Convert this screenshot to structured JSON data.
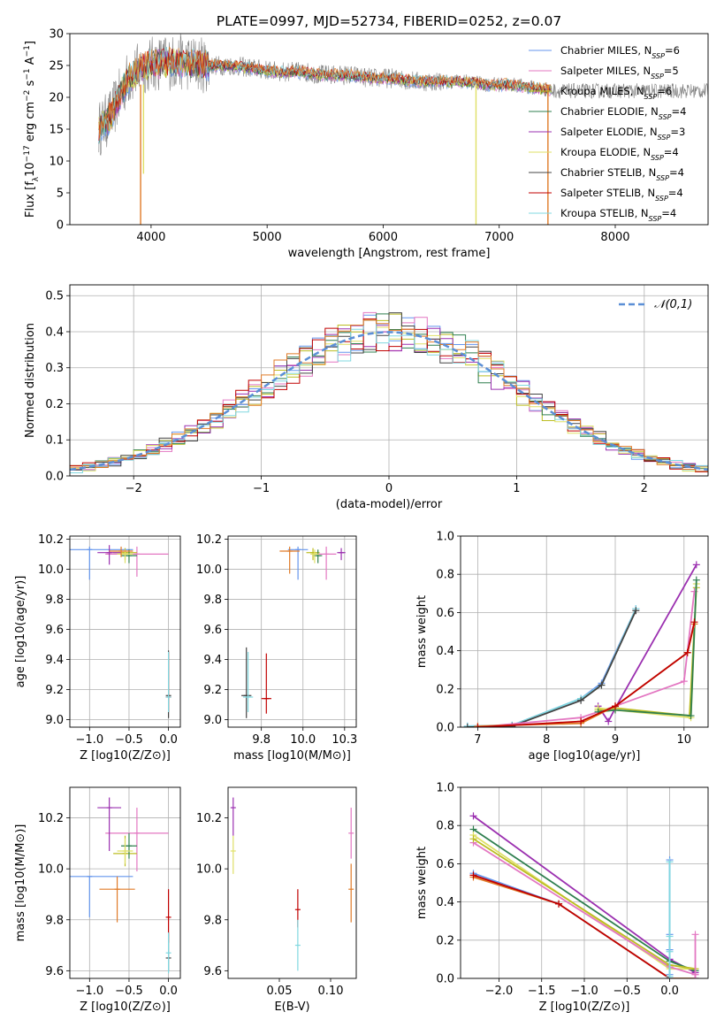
{
  "figure_title": "PLATE=0997, MJD=52734, FIBERID=0252, z=0.07",
  "colors": {
    "Chabrier MILES": "#6495ed",
    "Salpeter MILES": "#e377c2",
    "Kroupa MILES": "#bcbd22",
    "Chabrier ELODIE": "#2f7f4f",
    "Salpeter ELODIE": "#9b30b0",
    "Kroupa ELODIE": "#dfe066",
    "Chabrier STELIB": "#444444",
    "Salpeter STELIB": "#c00000",
    "Kroupa STELIB": "#80d8e0",
    "orange": "#e07b28",
    "gray_data": "#808080",
    "normal": "#5b8fd6"
  },
  "chart_data": [
    {
      "id": "spectrum",
      "type": "line",
      "title": "PLATE=0997, MJD=52734, FIBERID=0252, z=0.07",
      "xlabel": "wavelength [Angstrom, rest frame]",
      "ylabel": "Flux [f_λ 10^-17 erg cm^-2 s^-1 A^-1]",
      "xlim": [
        3300,
        8800
      ],
      "ylim": [
        0,
        30
      ],
      "xticks": [
        4000,
        5000,
        6000,
        7000,
        8000
      ],
      "yticks": [
        0,
        5,
        10,
        15,
        20,
        25,
        30
      ],
      "legend_position": "top-right",
      "legend": [
        {
          "name": "Chabrier MILES",
          "nssp": "6"
        },
        {
          "name": "Salpeter MILES",
          "nssp": "5"
        },
        {
          "name": "Kroupa MILES",
          "nssp": "6"
        },
        {
          "name": "Chabrier ELODIE",
          "nssp": "4"
        },
        {
          "name": "Salpeter ELODIE",
          "nssp": "3"
        },
        {
          "name": "Kroupa ELODIE",
          "nssp": "4"
        },
        {
          "name": "Chabrier STELIB",
          "nssp": "4"
        },
        {
          "name": "Salpeter STELIB",
          "nssp": "4"
        },
        {
          "name": "Kroupa STELIB",
          "nssp": "4"
        }
      ],
      "continuum": {
        "x": [
          3550,
          3650,
          3800,
          3950,
          4100,
          4300,
          4500,
          4700,
          4900,
          5100,
          5300,
          5500,
          5700,
          5900,
          6100,
          6300,
          6500,
          6700,
          6900,
          7100,
          7300,
          7500
        ],
        "y": [
          15,
          17,
          23,
          25,
          25.5,
          25.5,
          25,
          25,
          24.5,
          24,
          24,
          23.5,
          23.5,
          23,
          23,
          22.5,
          22.5,
          22.5,
          22,
          22,
          21.5,
          21
        ]
      },
      "dips": [
        {
          "x": 3910,
          "y": 0
        },
        {
          "x": 3935,
          "y": 8
        },
        {
          "x": 6800,
          "y": 0
        },
        {
          "x": 7420,
          "y": 0
        }
      ]
    },
    {
      "id": "residuals",
      "type": "line",
      "xlabel": "(data-model)/error",
      "ylabel": "Normed distribution",
      "xlim": [
        -2.5,
        2.5
      ],
      "ylim": [
        0,
        0.53
      ],
      "xticks": [
        -2,
        -1,
        0,
        1,
        2
      ],
      "yticks": [
        0.0,
        0.1,
        0.2,
        0.3,
        0.4,
        0.5
      ],
      "grid": true,
      "legend_position": "top-right",
      "legend": [
        "𝒩(0,1)"
      ],
      "bin_width": 0.1
    },
    {
      "id": "age_vs_Z",
      "type": "scatter",
      "xlabel": "Z [log10(Z/Z⊙)]",
      "ylabel": "age  [log10(age/yr)]",
      "xlim": [
        -1.25,
        0.15
      ],
      "ylim": [
        8.95,
        10.22
      ],
      "xticks": [
        -1.0,
        -0.5,
        0.0
      ],
      "yticks": [
        9.0,
        9.2,
        9.4,
        9.6,
        9.8,
        10.0,
        10.2
      ],
      "grid": true,
      "points": [
        {
          "series": "Chabrier MILES",
          "x": -1.0,
          "xerr": 1.1,
          "y": 10.13,
          "yerr": [
            0.2,
            0.02
          ]
        },
        {
          "series": "Salpeter MILES",
          "x": -0.4,
          "xerr": 0.8,
          "y": 10.1,
          "yerr": [
            0.15,
            0.05
          ]
        },
        {
          "series": "Kroupa MILES",
          "x": -0.55,
          "xerr": 0.3,
          "y": 10.11,
          "yerr": [
            0.05,
            0.03
          ]
        },
        {
          "series": "Chabrier ELODIE",
          "x": -0.5,
          "xerr": 0.2,
          "y": 10.09,
          "yerr": [
            0.05,
            0.04
          ]
        },
        {
          "series": "Salpeter ELODIE",
          "x": -0.75,
          "xerr": 0.3,
          "y": 10.11,
          "yerr": [
            0.08,
            0.05
          ]
        },
        {
          "series": "Kroupa ELODIE",
          "x": -0.55,
          "xerr": 0.2,
          "y": 10.1,
          "yerr": [
            0.06,
            0.03
          ]
        },
        {
          "series": "Chabrier STELIB",
          "x": 0.0,
          "xerr": 0.02,
          "y": 9.16,
          "yerr": [
            0.15,
            0.3
          ]
        },
        {
          "series": "Salpeter STELIB",
          "x": 0.0,
          "xerr": 0.02,
          "y": 9.15,
          "yerr": [
            0.1,
            0.3
          ]
        },
        {
          "series": "Kroupa STELIB",
          "x": 0.0,
          "xerr": 0.02,
          "y": 9.15,
          "yerr": [
            0.1,
            0.3
          ]
        },
        {
          "series": "orange",
          "x": -0.6,
          "xerr": 0.3,
          "y": 10.12,
          "yerr": [
            0.04,
            0.03
          ]
        }
      ]
    },
    {
      "id": "age_vs_mass",
      "type": "scatter",
      "xlabel": "mass [log10(M/M⊙)]",
      "ylabel": "",
      "xlim": [
        9.55,
        10.32
      ],
      "ylim": [
        8.95,
        10.22
      ],
      "xticks": [
        9.75,
        10.0,
        10.25
      ],
      "yticks": [
        9.0,
        9.2,
        9.4,
        9.6,
        9.8,
        10.0,
        10.2
      ],
      "grid": true,
      "points": [
        {
          "series": "Chabrier MILES",
          "x": 9.97,
          "xerr": 0.12,
          "y": 10.13,
          "yerr": [
            0.2,
            0.02
          ]
        },
        {
          "series": "Salpeter MILES",
          "x": 10.14,
          "xerr": 0.12,
          "y": 10.1,
          "yerr": [
            0.17,
            0.05
          ]
        },
        {
          "series": "Kroupa MILES",
          "x": 10.06,
          "xerr": 0.08,
          "y": 10.11,
          "yerr": [
            0.05,
            0.03
          ]
        },
        {
          "series": "Chabrier ELODIE",
          "x": 10.09,
          "xerr": 0.05,
          "y": 10.09,
          "yerr": [
            0.05,
            0.04
          ]
        },
        {
          "series": "Salpeter ELODIE",
          "x": 10.23,
          "xerr": 0.05,
          "y": 10.11,
          "yerr": [
            0.05,
            0.03
          ]
        },
        {
          "series": "Kroupa ELODIE",
          "x": 10.07,
          "xerr": 0.05,
          "y": 10.1,
          "yerr": [
            0.06,
            0.03
          ]
        },
        {
          "series": "Chabrier STELIB",
          "x": 9.66,
          "xerr": 0.06,
          "y": 9.16,
          "yerr": [
            0.15,
            0.32
          ]
        },
        {
          "series": "Salpeter STELIB",
          "x": 9.78,
          "xerr": 0.06,
          "y": 9.14,
          "yerr": [
            0.1,
            0.3
          ]
        },
        {
          "series": "Kroupa STELIB",
          "x": 9.67,
          "xerr": 0.06,
          "y": 9.15,
          "yerr": [
            0.1,
            0.3
          ]
        },
        {
          "series": "orange",
          "x": 9.92,
          "xerr": 0.12,
          "y": 10.12,
          "yerr": [
            0.15,
            0.03
          ]
        }
      ]
    },
    {
      "id": "weight_vs_age",
      "type": "line",
      "xlabel": "age  [log10(age/yr)]",
      "ylabel": "mass weight",
      "xlim": [
        6.75,
        10.35
      ],
      "ylim": [
        0,
        1.0
      ],
      "xticks": [
        7,
        8,
        9,
        10
      ],
      "yticks": [
        0.0,
        0.2,
        0.4,
        0.6,
        0.8,
        1.0
      ],
      "grid": true,
      "series": [
        {
          "name": "Chabrier MILES",
          "x": [
            6.85,
            7.5,
            8.5,
            8.8,
            9.3
          ],
          "y": [
            0.005,
            0.01,
            0.15,
            0.23,
            0.62
          ]
        },
        {
          "name": "Kroupa STELIB",
          "x": [
            6.85,
            7.5,
            8.5,
            8.8,
            9.3
          ],
          "y": [
            0.005,
            0.01,
            0.15,
            0.22,
            0.62
          ]
        },
        {
          "name": "Chabrier STELIB",
          "x": [
            6.85,
            7.5,
            8.5,
            8.8,
            9.3
          ],
          "y": [
            0.0,
            0.005,
            0.14,
            0.22,
            0.61
          ]
        },
        {
          "name": "Salpeter MILES",
          "x": [
            7.0,
            8.5,
            9.0,
            10.0,
            10.15
          ],
          "y": [
            0.0,
            0.05,
            0.11,
            0.24,
            0.71
          ]
        },
        {
          "name": "Salpeter ELODIE",
          "x": [
            8.75,
            8.9,
            9.0,
            10.18
          ],
          "y": [
            0.11,
            0.03,
            0.1,
            0.85
          ]
        },
        {
          "name": "Kroupa MILES",
          "x": [
            8.75,
            9.0,
            10.08,
            10.18
          ],
          "y": [
            0.09,
            0.1,
            0.06,
            0.73
          ]
        },
        {
          "name": "Kroupa ELODIE",
          "x": [
            8.75,
            9.0,
            10.1,
            10.18
          ],
          "y": [
            0.1,
            0.09,
            0.05,
            0.75
          ]
        },
        {
          "name": "Chabrier ELODIE",
          "x": [
            8.75,
            9.0,
            10.1,
            10.18
          ],
          "y": [
            0.08,
            0.09,
            0.06,
            0.77
          ]
        },
        {
          "name": "orange",
          "x": [
            7.0,
            8.5,
            9.0,
            10.05,
            10.15
          ],
          "y": [
            0.005,
            0.02,
            0.11,
            0.39,
            0.54
          ]
        },
        {
          "name": "Salpeter STELIB",
          "x": [
            7.0,
            8.5,
            9.0,
            10.05,
            10.15
          ],
          "y": [
            0.0,
            0.03,
            0.11,
            0.39,
            0.55
          ]
        }
      ]
    },
    {
      "id": "mass_vs_Z",
      "type": "scatter",
      "xlabel": "Z [log10(Z/Z⊙)]",
      "ylabel": "mass [log10(M/M⊙)]",
      "xlim": [
        -1.25,
        0.15
      ],
      "ylim": [
        9.57,
        10.32
      ],
      "xticks": [
        -1.0,
        -0.5,
        0.0
      ],
      "yticks": [
        9.6,
        9.8,
        10.0,
        10.2
      ],
      "grid": true,
      "points": [
        {
          "series": "Chabrier MILES",
          "x": -1.0,
          "xerr": 1.1,
          "y": 9.97,
          "yerr": [
            0.16,
            0.0
          ]
        },
        {
          "series": "Salpeter MILES",
          "x": -0.4,
          "xerr": 0.8,
          "y": 10.14,
          "yerr": [
            0.15,
            0.1
          ]
        },
        {
          "series": "Kroupa MILES",
          "x": -0.55,
          "xerr": 0.3,
          "y": 10.06,
          "yerr": [
            0.05,
            0.07
          ]
        },
        {
          "series": "Chabrier ELODIE",
          "x": -0.5,
          "xerr": 0.2,
          "y": 10.09,
          "yerr": [
            0.05,
            0.05
          ]
        },
        {
          "series": "Salpeter ELODIE",
          "x": -0.75,
          "xerr": 0.3,
          "y": 10.24,
          "yerr": [
            0.17,
            0.04
          ]
        },
        {
          "series": "Kroupa ELODIE",
          "x": -0.55,
          "xerr": 0.2,
          "y": 10.07,
          "yerr": [
            0.05,
            0.05
          ]
        },
        {
          "series": "Chabrier STELIB",
          "x": 0.0,
          "xerr": 0.02,
          "y": 9.65,
          "yerr": [
            0.05,
            0.1
          ]
        },
        {
          "series": "Salpeter STELIB",
          "x": 0.0,
          "xerr": 0.02,
          "y": 9.81,
          "yerr": [
            0.1,
            0.11
          ]
        },
        {
          "series": "Kroupa STELIB",
          "x": 0.0,
          "xerr": 0.02,
          "y": 9.67,
          "yerr": [
            0.08,
            0.08
          ]
        },
        {
          "series": "orange",
          "x": -0.65,
          "xerr": 0.45,
          "y": 9.92,
          "yerr": [
            0.13,
            0.05
          ]
        }
      ]
    },
    {
      "id": "mass_vs_EBV",
      "type": "scatter",
      "xlabel": "E(B-V)",
      "ylabel": "",
      "xlim": [
        0.0,
        0.125
      ],
      "ylim": [
        9.57,
        10.32
      ],
      "xticks": [
        0.05,
        0.1
      ],
      "yticks": [
        9.6,
        9.8,
        10.0,
        10.2
      ],
      "grid": false,
      "points": [
        {
          "series": "Salpeter ELODIE",
          "x": 0.005,
          "y": 10.24,
          "yerr": [
            0.11,
            0.04
          ]
        },
        {
          "series": "Kroupa ELODIE",
          "x": 0.005,
          "y": 10.07,
          "yerr": [
            0.09,
            0.06
          ]
        },
        {
          "series": "Salpeter STELIB",
          "x": 0.068,
          "y": 9.84,
          "yerr": [
            0.07,
            0.08
          ]
        },
        {
          "series": "Kroupa STELIB",
          "x": 0.068,
          "y": 9.7,
          "yerr": [
            0.1,
            0.1
          ]
        },
        {
          "series": "Salpeter MILES",
          "x": 0.12,
          "y": 10.14,
          "yerr": [
            0.1,
            0.1
          ]
        },
        {
          "series": "orange",
          "x": 0.12,
          "y": 9.92,
          "yerr": [
            0.13,
            0.1
          ]
        }
      ]
    },
    {
      "id": "weight_vs_Z",
      "type": "line",
      "xlabel": "Z [log10(Z/Z⊙)]",
      "ylabel": "mass weight",
      "xlim": [
        -2.45,
        0.45
      ],
      "ylim": [
        0,
        1.0
      ],
      "xticks": [
        -2.0,
        -1.5,
        -1.0,
        -0.5,
        0.0
      ],
      "yticks": [
        0.0,
        0.2,
        0.4,
        0.6,
        0.8,
        1.0
      ],
      "grid": true,
      "series": [
        {
          "name": "Salpeter ELODIE",
          "x": [
            -2.3,
            0.0,
            0.3
          ],
          "y": [
            0.85,
            0.1,
            0.03
          ]
        },
        {
          "name": "Chabrier ELODIE",
          "x": [
            -2.3,
            0.0,
            0.3
          ],
          "y": [
            0.78,
            0.09,
            0.04
          ]
        },
        {
          "name": "Kroupa ELODIE",
          "x": [
            -2.3,
            0.0,
            0.3
          ],
          "y": [
            0.75,
            0.05,
            0.05
          ]
        },
        {
          "name": "Salpeter MILES",
          "x": [
            -2.3,
            0.0,
            0.3
          ],
          "y": [
            0.71,
            0.06,
            0.02
          ]
        },
        {
          "name": "Kroupa MILES",
          "x": [
            -2.3,
            0.0,
            0.3
          ],
          "y": [
            0.73,
            0.07,
            0.05
          ]
        },
        {
          "name": "Chabrier MILES",
          "x": [
            -2.3,
            -1.3,
            0.0,
            0.3
          ],
          "y": [
            0.55,
            0.39,
            0.0,
            0.0
          ]
        },
        {
          "name": "orange",
          "x": [
            -2.3,
            -1.3,
            0.0,
            0.3
          ],
          "y": [
            0.53,
            0.39,
            0.0,
            0.0
          ]
        },
        {
          "name": "Salpeter STELIB",
          "x": [
            -2.3,
            -1.3,
            0.0
          ],
          "y": [
            0.54,
            0.39,
            0.0
          ]
        }
      ],
      "stacks": [
        {
          "x": 0.0,
          "y": [
            0.0,
            0.02,
            0.15,
            0.23,
            0.62
          ],
          "series": "Chabrier MILES"
        },
        {
          "x": 0.0,
          "y": [
            0.0,
            0.01,
            0.14,
            0.22,
            0.61
          ],
          "series": "Kroupa STELIB"
        },
        {
          "x": 0.3,
          "y": [
            0.0,
            0.02,
            0.23
          ],
          "series": "Salpeter MILES"
        }
      ]
    }
  ]
}
